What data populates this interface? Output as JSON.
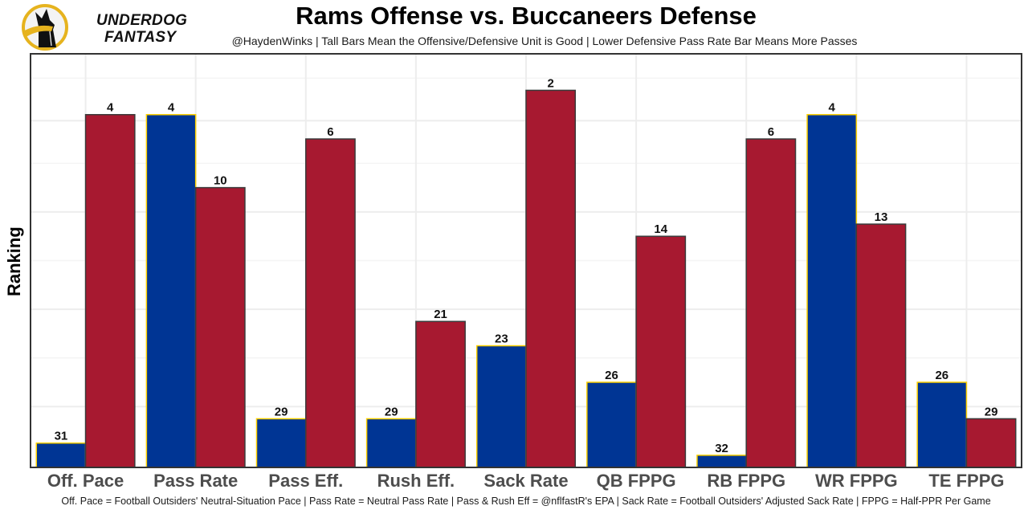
{
  "logo": {
    "line1": "UNDERDOG",
    "line2": "FANTASY",
    "colors": {
      "ring": "#e6b31e",
      "dog": "#111111",
      "bg": "#ffffff"
    }
  },
  "chart_data": {
    "type": "bar",
    "title": "Rams Offense vs. Buccaneers Defense",
    "subtitle": "@HaydenWinks | Tall Bars Mean the Offensive/Defensive Unit is Good | Lower Defensive Pass Rate Bar Means More Passes",
    "xlabel": "",
    "ylabel": "Ranking",
    "caption": "Off. Pace = Football Outsiders' Neutral-Situation Pace | Pass Rate = Neutral Pass Rate | Pass & Rush Eff = @nflfastR's EPA | Sack Rate = Football Outsiders' Adjusted Sack Rate | FPPG = Half-PPR Per Game",
    "categories": [
      "Off. Pace",
      "Pass Rate",
      "Pass Eff.",
      "Rush Eff.",
      "Sack Rate",
      "QB FPPG",
      "RB FPPG",
      "WR FPPG",
      "TE FPPG"
    ],
    "series": [
      {
        "name": "Rams Offense",
        "color": "#003594",
        "outline": "#ffd100",
        "values": [
          31,
          4,
          29,
          29,
          23,
          26,
          32,
          4,
          26
        ]
      },
      {
        "name": "Buccaneers Defense",
        "color": "#a71930",
        "outline": "#3a3a3a",
        "values": [
          4,
          10,
          6,
          21,
          2,
          14,
          6,
          13,
          29
        ]
      }
    ],
    "value_note": "Values are rankings (1 = best of 32); bar height = 33 - rank",
    "rank_max": 32,
    "ylim": [
      0,
      34
    ],
    "y_tick_labels_shown": false,
    "grid": true,
    "legend": "none"
  }
}
